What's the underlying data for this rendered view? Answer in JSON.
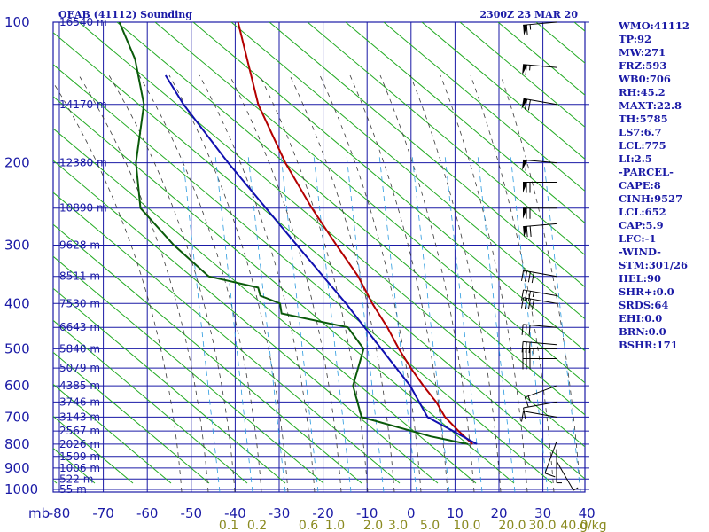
{
  "header": {
    "station_title": "OEAB (41112) Sounding",
    "valid_time": "2300Z 23 MAR 20"
  },
  "chart_data": {
    "type": "line",
    "diagram": "skew-T log-p",
    "title": "OEAB (41112) Sounding",
    "subtitle": "2300Z 23 MAR 20",
    "y_unit_label": "mb",
    "mixing_ratio_unit": "g/kg",
    "pressure_ticks": [
      100,
      200,
      300,
      400,
      500,
      600,
      700,
      800,
      900,
      1000
    ],
    "temperature_ticks": [
      -80,
      -70,
      -60,
      -50,
      -40,
      -30,
      -20,
      -10,
      0,
      10,
      20,
      30,
      40
    ],
    "mixing_ratio_ticks": [
      "0.1",
      "0.2",
      "0.6",
      "1.0",
      "2.0",
      "3.0",
      "5.0",
      "10.0",
      "20.0",
      "30.0",
      "40.0"
    ],
    "height_labels": [
      {
        "p": 100,
        "text": "16540 m"
      },
      {
        "p": 150,
        "text": "14170 m"
      },
      {
        "p": 200,
        "text": "12380 m"
      },
      {
        "p": 250,
        "text": "10890 m"
      },
      {
        "p": 300,
        "text": "9628 m"
      },
      {
        "p": 350,
        "text": "8511 m"
      },
      {
        "p": 400,
        "text": "7530 m"
      },
      {
        "p": 450,
        "text": "6643 m"
      },
      {
        "p": 500,
        "text": "5840 m"
      },
      {
        "p": 550,
        "text": "5079 m"
      },
      {
        "p": 600,
        "text": "4385 m"
      },
      {
        "p": 650,
        "text": "3746 m"
      },
      {
        "p": 700,
        "text": "3143 m"
      },
      {
        "p": 750,
        "text": "2567 m"
      },
      {
        "p": 800,
        "text": "2026 m"
      },
      {
        "p": 850,
        "text": "1509 m"
      },
      {
        "p": 900,
        "text": "1006 m"
      },
      {
        "p": 950,
        "text": "522 m"
      },
      {
        "p": 1000,
        "text": "55 m"
      }
    ],
    "series": [
      {
        "key": "temperature",
        "color": "#b40000",
        "points": [
          [
            800,
            11
          ],
          [
            750,
            7
          ],
          [
            700,
            3
          ],
          [
            650,
            0
          ],
          [
            600,
            -4
          ],
          [
            550,
            -8
          ],
          [
            500,
            -12
          ],
          [
            450,
            -16
          ],
          [
            400,
            -21
          ],
          [
            350,
            -26
          ],
          [
            300,
            -33
          ],
          [
            250,
            -41
          ],
          [
            200,
            -50
          ],
          [
            150,
            -60
          ],
          [
            100,
            -70
          ]
        ]
      },
      {
        "key": "dewpoint",
        "color": "#0a5a0a",
        "points": [
          [
            800,
            10
          ],
          [
            770,
            1
          ],
          [
            700,
            -16
          ],
          [
            600,
            -20
          ],
          [
            500,
            -20
          ],
          [
            450,
            -25
          ],
          [
            420,
            -41
          ],
          [
            400,
            -42
          ],
          [
            385,
            -47
          ],
          [
            370,
            -48
          ],
          [
            350,
            -60
          ],
          [
            300,
            -70
          ],
          [
            250,
            -80
          ],
          [
            200,
            -84
          ],
          [
            150,
            -86
          ],
          [
            120,
            -91
          ],
          [
            100,
            -97
          ]
        ]
      },
      {
        "key": "parcel",
        "color": "#1010b0",
        "points": [
          [
            800,
            12
          ],
          [
            700,
            -1
          ],
          [
            600,
            -7
          ],
          [
            500,
            -16
          ],
          [
            400,
            -27
          ],
          [
            300,
            -42
          ],
          [
            200,
            -63
          ],
          [
            150,
            -77
          ],
          [
            130,
            -83
          ]
        ]
      }
    ],
    "wind_barbs": [
      {
        "p": 100,
        "dir": 265,
        "spd": 65
      },
      {
        "p": 125,
        "dir": 275,
        "spd": 65
      },
      {
        "p": 150,
        "dir": 280,
        "spd": 70
      },
      {
        "p": 200,
        "dir": 275,
        "spd": 60
      },
      {
        "p": 220,
        "dir": 270,
        "spd": 70
      },
      {
        "p": 250,
        "dir": 270,
        "spd": 70
      },
      {
        "p": 270,
        "dir": 265,
        "spd": 70
      },
      {
        "p": 350,
        "dir": 280,
        "spd": 40
      },
      {
        "p": 385,
        "dir": 280,
        "spd": 35
      },
      {
        "p": 400,
        "dir": 280,
        "spd": 40
      },
      {
        "p": 450,
        "dir": 275,
        "spd": 30
      },
      {
        "p": 490,
        "dir": 275,
        "spd": 30
      },
      {
        "p": 500,
        "dir": 270,
        "spd": 35
      },
      {
        "p": 525,
        "dir": 270,
        "spd": 30
      },
      {
        "p": 600,
        "dir": 250,
        "spd": 15
      },
      {
        "p": 650,
        "dir": 260,
        "spd": 10
      },
      {
        "p": 700,
        "dir": 280,
        "spd": 10
      },
      {
        "p": 790,
        "dir": 200,
        "spd": 10
      },
      {
        "p": 820,
        "dir": 180,
        "spd": 5
      },
      {
        "p": 870,
        "dir": 150,
        "spd": 5
      }
    ]
  },
  "indices": [
    "WMO:41112",
    "TP:92",
    "MW:271",
    "FRZ:593",
    "WB0:706",
    "RH:45.2",
    "MAXT:22.8",
    "TH:5785",
    "LS7:6.7",
    "LCL:775",
    "LI:2.5",
    "-PARCEL-",
    "CAPE:8",
    "CINH:9527",
    "LCL:652",
    "CAP:5.9",
    "LFC:-1",
    "-WIND-",
    "STM:301/26",
    "HEL:90",
    "SHR+:0.0",
    "SRDS:64",
    "EHI:0.0",
    "BRN:0.0",
    "BSHR:171"
  ],
  "colors": {
    "grid": "#1a1aa6",
    "dry_adiabat": "#22aa22",
    "moist_adiabat": "#3a3a3a",
    "mixing_ratio": "#2a9adf",
    "barb": "#000000"
  }
}
